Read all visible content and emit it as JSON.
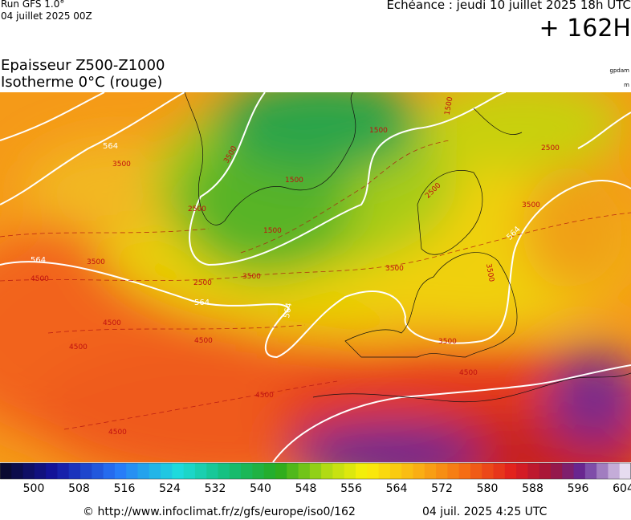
{
  "header": {
    "run": "Run GFS 1.0°",
    "run_date": "04 juillet 2025 00Z",
    "valid": "Echéance : jeudi 10 juillet 2025 18h UTC",
    "lead": "+ 162H"
  },
  "title": {
    "line1": "Epaisseur Z500-Z1000",
    "line2": "Isotherme 0°C (rouge)"
  },
  "units": {
    "thickness": "gpdam",
    "isotherm": "m"
  },
  "map": {
    "thickness_labels": [
      "564",
      "564",
      "564",
      "564",
      "564"
    ],
    "isotherm_labels": [
      "3500",
      "3500",
      "4500",
      "4500",
      "4500",
      "4500",
      "4500",
      "4500",
      "2500",
      "3500",
      "2500",
      "1500",
      "1500",
      "1500",
      "1500",
      "2500",
      "3500",
      "3500",
      "3500",
      "3500",
      "2500",
      "3500",
      "4500"
    ]
  },
  "colorbar": {
    "labels": [
      "500",
      "508",
      "516",
      "524",
      "532",
      "540",
      "548",
      "556",
      "564",
      "572",
      "580",
      "588",
      "596",
      "604"
    ]
  },
  "footer": {
    "url": "© http://www.infoclimat.fr/z/gfs/europe/iso0/162",
    "timestamp": "04 juil. 2025  4:25 UTC"
  }
}
